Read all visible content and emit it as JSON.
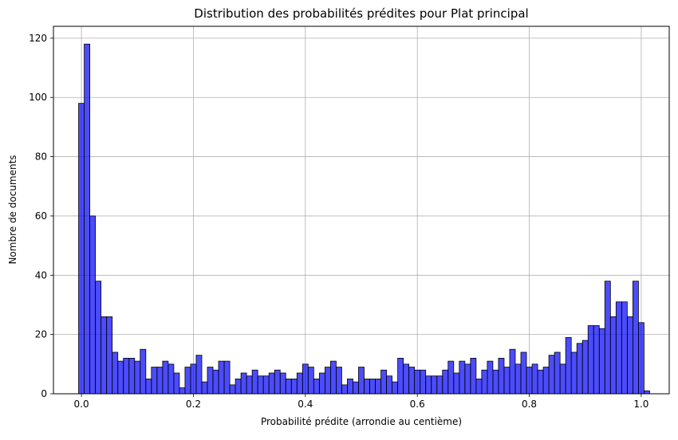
{
  "chart_data": {
    "type": "bar",
    "title": "Distribution des probabilités prédites pour Plat principal",
    "xlabel": "Probabilité prédite (arrondie au centième)",
    "ylabel": "Nombre de documents",
    "xlim": [
      -0.05,
      1.05
    ],
    "ylim": [
      0,
      124
    ],
    "xticks": [
      "0.0",
      "0.2",
      "0.4",
      "0.6",
      "0.8",
      "1.0"
    ],
    "yticks": [
      "0",
      "20",
      "40",
      "60",
      "80",
      "100",
      "120"
    ],
    "grid": true,
    "bar_color": "#0000ff",
    "bar_edge_color": "#000000",
    "bins_start": 0.0,
    "bin_width": 0.01,
    "values": [
      98,
      118,
      60,
      38,
      26,
      26,
      14,
      11,
      12,
      12,
      11,
      15,
      5,
      9,
      9,
      11,
      10,
      7,
      2,
      9,
      10,
      13,
      4,
      9,
      8,
      11,
      11,
      3,
      5,
      7,
      6,
      8,
      6,
      6,
      7,
      8,
      7,
      5,
      5,
      7,
      10,
      9,
      5,
      7,
      9,
      11,
      9,
      3,
      5,
      4,
      9,
      5,
      5,
      5,
      8,
      6,
      4,
      12,
      10,
      9,
      8,
      8,
      6,
      6,
      6,
      8,
      11,
      7,
      11,
      10,
      12,
      5,
      8,
      11,
      8,
      12,
      9,
      15,
      10,
      14,
      9,
      10,
      8,
      9,
      13,
      14,
      10,
      19,
      14,
      17,
      18,
      23,
      23,
      22,
      38,
      26,
      31,
      31,
      26,
      38,
      24,
      1
    ]
  }
}
